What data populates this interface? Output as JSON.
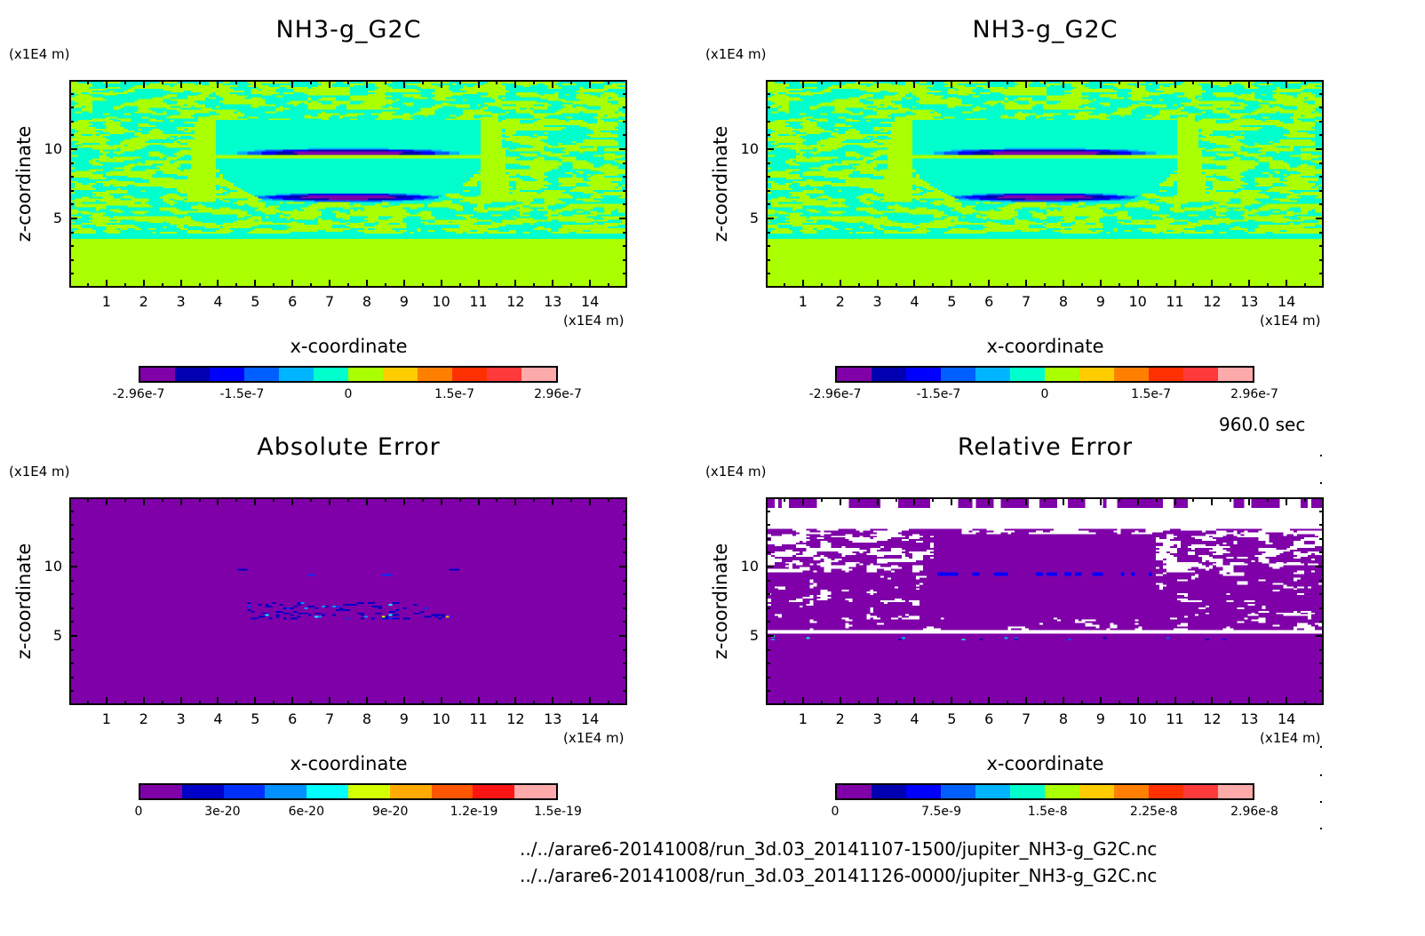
{
  "chart_data": [
    {
      "type": "heatmap",
      "id": "nh3-run1",
      "title": "NH3-g_G2C",
      "xlabel": "x-coordinate",
      "ylabel": "z-coordinate",
      "x_unit": "(x1E4 m)",
      "z_unit": "(x1E4 m)",
      "xlim": [
        0,
        15
      ],
      "ylim": [
        0,
        15
      ],
      "xticks": [
        "1",
        "2",
        "3",
        "4",
        "5",
        "6",
        "7",
        "8",
        "9",
        "10",
        "11",
        "12",
        "13",
        "14"
      ],
      "yticks": [
        "5",
        "10"
      ],
      "grid": false,
      "field": "nh3",
      "colorbar": {
        "range": [
          -2.96e-07,
          2.96e-07
        ],
        "labels": [
          {
            "text": "-2.96e-7",
            "value": -2.96e-07
          },
          {
            "text": "-1.5e-7",
            "value": -1.5e-07
          },
          {
            "text": "0",
            "value": 0
          },
          {
            "text": "1.5e-7",
            "value": 1.5e-07
          },
          {
            "text": "2.96e-7",
            "value": 2.96e-07
          }
        ],
        "colors": [
          "#7f00a8",
          "#0000b0",
          "#0000ff",
          "#0060ff",
          "#00b4ff",
          "#00ffcc",
          "#aaff00",
          "#ffcc00",
          "#ff8000",
          "#ff3000",
          "#ff3a3a",
          "#ffaaaa"
        ]
      }
    },
    {
      "type": "heatmap",
      "id": "nh3-run2",
      "title": "NH3-g_G2C",
      "xlabel": "x-coordinate",
      "ylabel": "z-coordinate",
      "x_unit": "(x1E4 m)",
      "z_unit": "(x1E4 m)",
      "xlim": [
        0,
        15
      ],
      "ylim": [
        0,
        15
      ],
      "xticks": [
        "1",
        "2",
        "3",
        "4",
        "5",
        "6",
        "7",
        "8",
        "9",
        "10",
        "11",
        "12",
        "13",
        "14"
      ],
      "yticks": [
        "5",
        "10"
      ],
      "grid": false,
      "field": "nh3",
      "colorbar": {
        "range": [
          -2.96e-07,
          2.96e-07
        ],
        "labels": [
          {
            "text": "-2.96e-7",
            "value": -2.96e-07
          },
          {
            "text": "-1.5e-7",
            "value": -1.5e-07
          },
          {
            "text": "0",
            "value": 0
          },
          {
            "text": "1.5e-7",
            "value": 1.5e-07
          },
          {
            "text": "2.96e-7",
            "value": 2.96e-07
          }
        ],
        "colors": [
          "#7f00a8",
          "#0000b0",
          "#0000ff",
          "#0060ff",
          "#00b4ff",
          "#00ffcc",
          "#aaff00",
          "#ffcc00",
          "#ff8000",
          "#ff3000",
          "#ff3a3a",
          "#ffaaaa"
        ]
      }
    },
    {
      "type": "heatmap",
      "id": "absolute-error",
      "title": "Absolute Error",
      "xlabel": "x-coordinate",
      "ylabel": "z-coordinate",
      "x_unit": "(x1E4 m)",
      "z_unit": "(x1E4 m)",
      "xlim": [
        0,
        15
      ],
      "ylim": [
        0,
        15
      ],
      "xticks": [
        "1",
        "2",
        "3",
        "4",
        "5",
        "6",
        "7",
        "8",
        "9",
        "10",
        "11",
        "12",
        "13",
        "14"
      ],
      "yticks": [
        "5",
        "10"
      ],
      "grid": false,
      "field": "abs",
      "colorbar": {
        "range": [
          0,
          1.5e-19
        ],
        "labels": [
          {
            "text": "0",
            "value": 0
          },
          {
            "text": "3e-20",
            "value": 3e-20
          },
          {
            "text": "6e-20",
            "value": 6e-20
          },
          {
            "text": "9e-20",
            "value": 9e-20
          },
          {
            "text": "1.2e-19",
            "value": 1.2e-19
          },
          {
            "text": "1.5e-19",
            "value": 1.5e-19
          }
        ],
        "colors": [
          "#7f00a8",
          "#0000c8",
          "#0030ff",
          "#0090ff",
          "#00ffff",
          "#d4ff00",
          "#ffaa00",
          "#ff5500",
          "#ff1414",
          "#ffaaaa"
        ]
      }
    },
    {
      "type": "heatmap",
      "id": "relative-error",
      "title": "Relative Error",
      "xlabel": "x-coordinate",
      "ylabel": "z-coordinate",
      "x_unit": "(x1E4 m)",
      "z_unit": "(x1E4 m)",
      "xlim": [
        0,
        15
      ],
      "ylim": [
        0,
        15
      ],
      "xticks": [
        "1",
        "2",
        "3",
        "4",
        "5",
        "6",
        "7",
        "8",
        "9",
        "10",
        "11",
        "12",
        "13",
        "14"
      ],
      "yticks": [
        "5",
        "10"
      ],
      "grid": false,
      "field": "rel",
      "colorbar": {
        "range": [
          0,
          2.96e-08
        ],
        "labels": [
          {
            "text": "0",
            "value": 0
          },
          {
            "text": "7.5e-9",
            "value": 7.5e-09
          },
          {
            "text": "1.5e-8",
            "value": 1.5e-08
          },
          {
            "text": "2.25e-8",
            "value": 2.25e-08
          },
          {
            "text": "2.96e-8",
            "value": 2.96e-08
          }
        ],
        "colors": [
          "#7f00a8",
          "#0000b0",
          "#0000ff",
          "#0060ff",
          "#00b4ff",
          "#00ffcc",
          "#aaff00",
          "#ffcc00",
          "#ff8000",
          "#ff3000",
          "#ff3a3a",
          "#ffaaaa"
        ]
      }
    }
  ],
  "footer": {
    "time": "960.0 sec",
    "files": [
      "../../arare6-20141008/run_3d.03_20141107-1500/jupiter_NH3-g_G2C.nc",
      "../../arare6-20141008/run_3d.03_20141126-0000/jupiter_NH3-g_G2C.nc"
    ]
  }
}
